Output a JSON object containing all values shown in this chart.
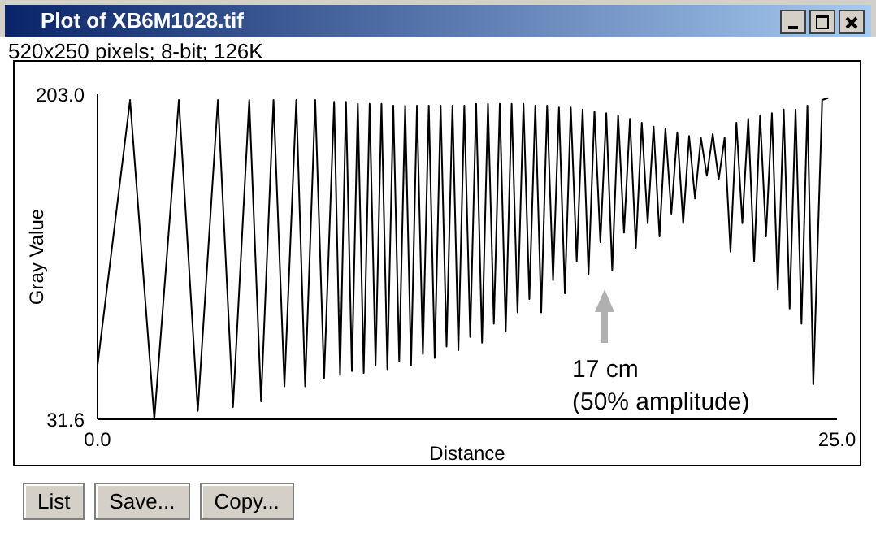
{
  "chart_data": {
    "type": "line",
    "title": "Plot of XB6M1028.tif",
    "subtitle": "520x250 pixels; 8-bit; 126K",
    "xlabel": "Distance",
    "ylabel": "Gray Value",
    "x": [
      0,
      1.1,
      1.92,
      2.75,
      3.39,
      4.07,
      4.58,
      5.13,
      5.53,
      5.95,
      6.32,
      6.72,
      7.02,
      7.36,
      7.66,
      8.0,
      8.2,
      8.4,
      8.6,
      8.8,
      9.0,
      9.2,
      9.4,
      9.6,
      9.8,
      10.0,
      10.2,
      10.4,
      10.6,
      10.8,
      11.0,
      11.2,
      11.4,
      11.6,
      11.8,
      12.0,
      12.2,
      12.4,
      12.6,
      12.8,
      13.0,
      13.2,
      13.4,
      13.6,
      13.8,
      14.0,
      14.2,
      14.4,
      14.6,
      14.8,
      15.0,
      15.2,
      15.4,
      15.6,
      15.8,
      16.0,
      16.2,
      16.4,
      16.6,
      16.8,
      17.0,
      17.2,
      17.4,
      17.6,
      17.8,
      18.0,
      18.2,
      18.4,
      18.6,
      18.8,
      19.0,
      19.2,
      19.4,
      19.6,
      19.8,
      20.0,
      20.2,
      20.4,
      20.6,
      20.8,
      21.0,
      21.2,
      21.4,
      21.6,
      21.8,
      22.0,
      22.2,
      22.4,
      22.6,
      22.8,
      23.0,
      23.2,
      23.4,
      23.6,
      23.8,
      24.0,
      24.2,
      24.5,
      24.7
    ],
    "series": [
      {
        "color": "#000000",
        "values": [
          60,
          200,
          31.6,
          200,
          36,
          200,
          38,
          200,
          41,
          200,
          49,
          200,
          49,
          200,
          53,
          199,
          55,
          199,
          57,
          198,
          56,
          198,
          60,
          198,
          58,
          197,
          62,
          197,
          60,
          197,
          66,
          197,
          64,
          197,
          70,
          197,
          68,
          197,
          75,
          198,
          72,
          198,
          82,
          198,
          78,
          198,
          88,
          198,
          95,
          197,
          88,
          197,
          105,
          196,
          98,
          196,
          115,
          195,
          108,
          194,
          125,
          193,
          110,
          192,
          130,
          190,
          122,
          188,
          135,
          186,
          128,
          185,
          140,
          183,
          135,
          181,
          148,
          180,
          160,
          182,
          158,
          180,
          120,
          188,
          135,
          190,
          115,
          192,
          128,
          193,
          100,
          195,
          90,
          195,
          82,
          197,
          50,
          200,
          201
        ]
      }
    ],
    "xlim": [
      0,
      25
    ],
    "xticks": [
      {
        "value": 0,
        "label": "0.0"
      },
      {
        "value": 25,
        "label": "25.0"
      }
    ],
    "ylim": [
      31.6,
      203
    ],
    "yticks": [
      31.6,
      {
        "value": 203,
        "label": "203.0"
      }
    ],
    "grid": false,
    "legend": false,
    "marker": "none",
    "line_style": "solid",
    "annotations": [
      "17 cm\n(50% amplitude)",
      "List",
      "Save...",
      "Copy..."
    ]
  }
}
